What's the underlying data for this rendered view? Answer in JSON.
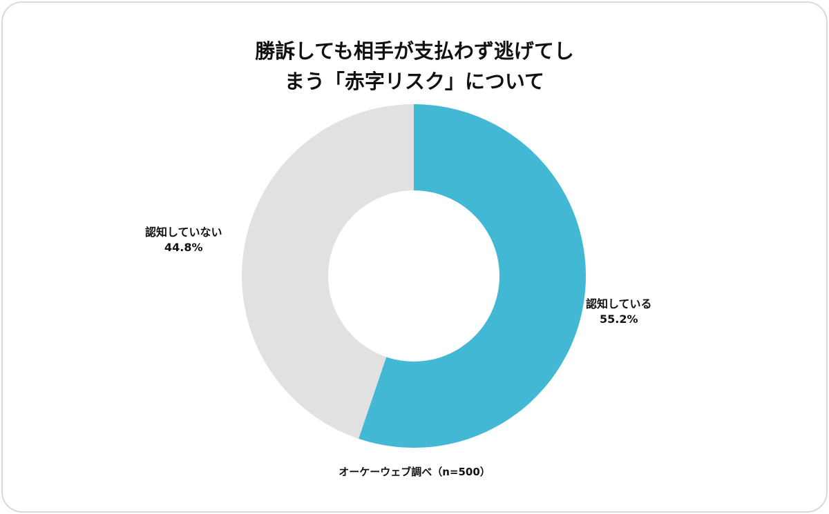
{
  "chart_data": {
    "type": "pie",
    "variant": "donut",
    "title_lines": [
      "勝訴しても相手が支払わず逃げてし",
      "まう「赤字リスク」について"
    ],
    "slices": [
      {
        "label": "認知している",
        "value": 55.2,
        "value_label": "55.2%",
        "color": "#42B8D5"
      },
      {
        "label": "認知していない",
        "value": 44.8,
        "value_label": "44.8%",
        "color": "#E1E1E1"
      }
    ],
    "start": "top",
    "direction": "clockwise",
    "source": "オーケーウェブ調べ（n=500）"
  }
}
